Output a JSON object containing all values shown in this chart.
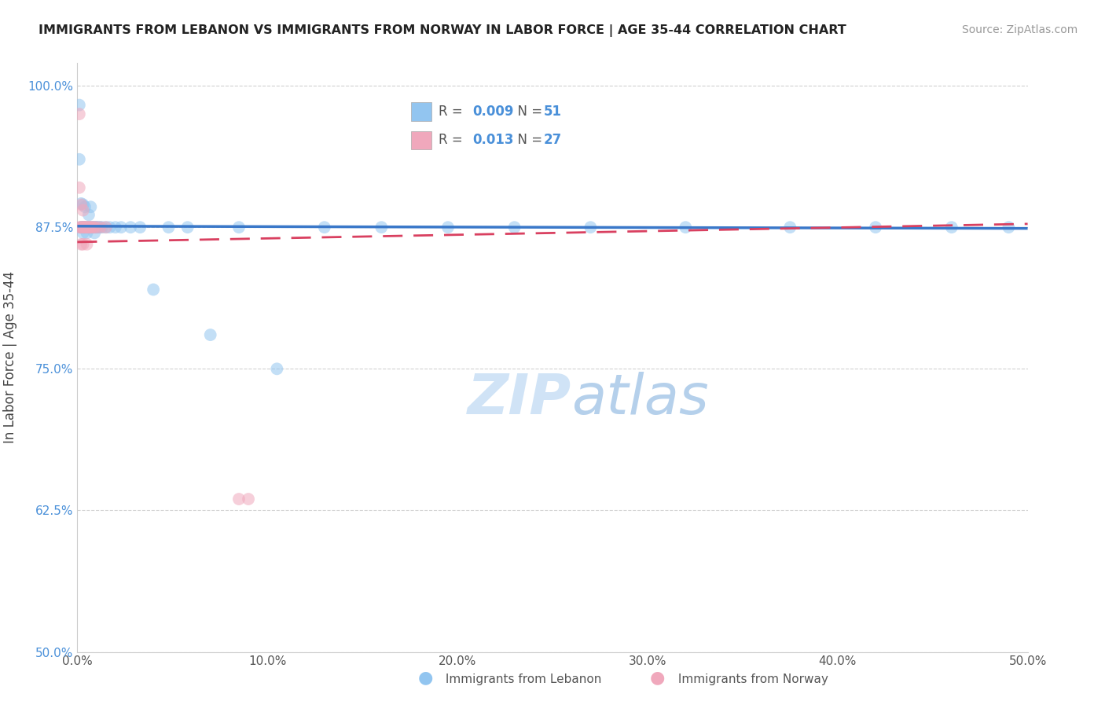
{
  "title": "IMMIGRANTS FROM LEBANON VS IMMIGRANTS FROM NORWAY IN LABOR FORCE | AGE 35-44 CORRELATION CHART",
  "source": "Source: ZipAtlas.com",
  "ylabel": "In Labor Force | Age 35-44",
  "x_min": 0.0,
  "x_max": 0.5,
  "y_min": 0.5,
  "y_max": 1.02,
  "x_ticks": [
    0.0,
    0.1,
    0.2,
    0.3,
    0.4,
    0.5
  ],
  "x_tick_labels": [
    "0.0%",
    "10.0%",
    "20.0%",
    "30.0%",
    "40.0%",
    "50.0%"
  ],
  "y_ticks": [
    0.5,
    0.625,
    0.75,
    0.875,
    1.0
  ],
  "y_tick_labels": [
    "50.0%",
    "62.5%",
    "75.0%",
    "87.5%",
    "100.0%"
  ],
  "color_lebanon": "#92c5f0",
  "color_norway": "#f0a8bc",
  "color_line_lebanon": "#3a78c9",
  "color_line_norway": "#d94060",
  "watermark_zip": "ZIP",
  "watermark_atlas": "atlas",
  "lebanon_x": [
    0.001,
    0.001,
    0.002,
    0.002,
    0.002,
    0.003,
    0.003,
    0.003,
    0.003,
    0.003,
    0.004,
    0.004,
    0.004,
    0.005,
    0.005,
    0.006,
    0.006,
    0.006,
    0.007,
    0.007,
    0.008,
    0.008,
    0.009,
    0.009,
    0.01,
    0.01,
    0.011,
    0.012,
    0.013,
    0.015,
    0.017,
    0.02,
    0.023,
    0.028,
    0.033,
    0.04,
    0.048,
    0.058,
    0.07,
    0.085,
    0.105,
    0.13,
    0.16,
    0.195,
    0.23,
    0.27,
    0.32,
    0.375,
    0.42,
    0.46,
    0.49
  ],
  "lebanon_y": [
    0.983,
    0.935,
    0.896,
    0.875,
    0.875,
    0.895,
    0.875,
    0.875,
    0.875,
    0.87,
    0.893,
    0.875,
    0.875,
    0.875,
    0.87,
    0.886,
    0.875,
    0.875,
    0.893,
    0.875,
    0.875,
    0.875,
    0.875,
    0.87,
    0.875,
    0.875,
    0.875,
    0.875,
    0.875,
    0.875,
    0.875,
    0.875,
    0.875,
    0.875,
    0.875,
    0.82,
    0.875,
    0.875,
    0.78,
    0.875,
    0.75,
    0.875,
    0.875,
    0.875,
    0.875,
    0.875,
    0.875,
    0.875,
    0.875,
    0.875,
    0.875
  ],
  "norway_x": [
    0.001,
    0.001,
    0.001,
    0.002,
    0.002,
    0.002,
    0.002,
    0.003,
    0.003,
    0.003,
    0.003,
    0.004,
    0.004,
    0.005,
    0.005,
    0.005,
    0.006,
    0.006,
    0.007,
    0.007,
    0.008,
    0.009,
    0.01,
    0.012,
    0.015,
    0.085,
    0.09
  ],
  "norway_y": [
    0.975,
    0.91,
    0.875,
    0.895,
    0.875,
    0.875,
    0.86,
    0.89,
    0.875,
    0.875,
    0.86,
    0.875,
    0.875,
    0.875,
    0.875,
    0.86,
    0.875,
    0.875,
    0.875,
    0.875,
    0.875,
    0.875,
    0.875,
    0.875,
    0.875,
    0.635,
    0.635
  ],
  "leb_trend_x0": 0.0,
  "leb_trend_y0": 0.876,
  "leb_trend_x1": 0.5,
  "leb_trend_y1": 0.874,
  "nor_trend_x0": 0.0,
  "nor_trend_y0": 0.862,
  "nor_trend_x1": 0.5,
  "nor_trend_y1": 0.878
}
